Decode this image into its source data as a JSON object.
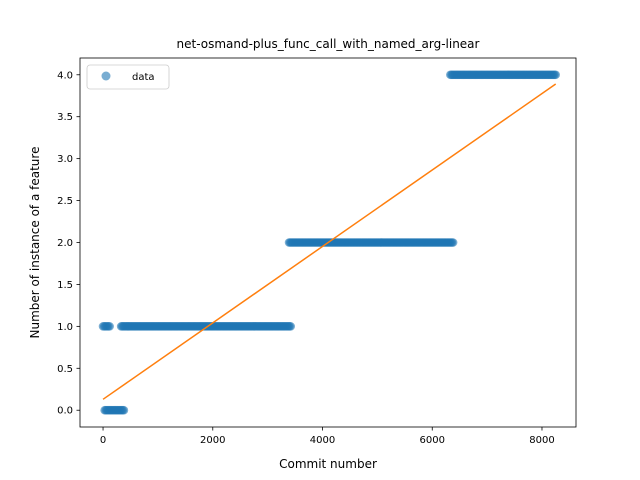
{
  "chart_data": {
    "type": "scatter",
    "title": "net-osmand-plus_func_call_with_named_arg-linear",
    "xlabel": "Commit number",
    "ylabel": "Number of instance of a feature",
    "xlim": [
      -420,
      8620
    ],
    "ylim": [
      -0.2,
      4.2
    ],
    "xticks": [
      0,
      2000,
      4000,
      6000,
      8000
    ],
    "yticks": [
      0.0,
      0.5,
      1.0,
      1.5,
      2.0,
      2.5,
      3.0,
      3.5,
      4.0
    ],
    "xtick_labels": [
      "0",
      "2000",
      "4000",
      "6000",
      "8000"
    ],
    "ytick_labels": [
      "0.0",
      "0.5",
      "1.0",
      "1.5",
      "2.0",
      "2.5",
      "3.0",
      "3.5",
      "4.0"
    ],
    "grid": false,
    "legend": {
      "position": "top-left",
      "entries": [
        "data"
      ]
    },
    "series": [
      {
        "name": "data",
        "kind": "points",
        "color": "#1f77b4",
        "segments": [
          {
            "x_start": 0,
            "x_end": 120,
            "y": 1.0
          },
          {
            "x_start": 30,
            "x_end": 380,
            "y": 0.0
          },
          {
            "x_start": 330,
            "x_end": 3420,
            "y": 1.0
          },
          {
            "x_start": 3390,
            "x_end": 6380,
            "y": 2.0
          },
          {
            "x_start": 6330,
            "x_end": 8250,
            "y": 4.0
          }
        ]
      },
      {
        "name": "",
        "kind": "line",
        "color": "#ff7f0e",
        "x": [
          0,
          8250
        ],
        "y": [
          0.13,
          3.89
        ]
      }
    ]
  }
}
